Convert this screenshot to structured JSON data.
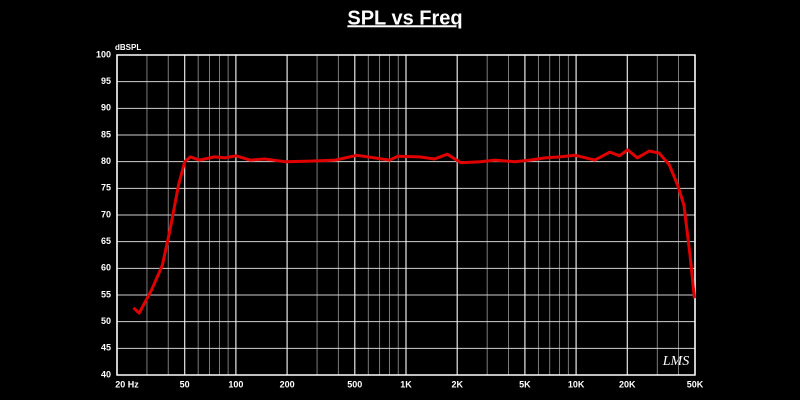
{
  "chart_data": {
    "type": "line",
    "title": "SPL vs Freq",
    "y_label": "dBSPL",
    "watermark": "LMS",
    "x_log": true,
    "grid": true,
    "xlim": [
      20,
      50000
    ],
    "ylim": [
      40,
      100
    ],
    "xticks": [
      {
        "value": 20,
        "label": "20 Hz"
      },
      50,
      100,
      200,
      500,
      {
        "value": 1000,
        "label": "1K"
      },
      {
        "value": 2000,
        "label": "2K"
      },
      {
        "value": 5000,
        "label": "5K"
      },
      {
        "value": 10000,
        "label": "10K"
      },
      {
        "value": 20000,
        "label": "20K"
      },
      {
        "value": 50000,
        "label": "50K"
      }
    ],
    "x_minor_ticks": [
      30,
      40,
      60,
      70,
      80,
      90,
      300,
      400,
      600,
      700,
      800,
      900,
      3000,
      4000,
      6000,
      7000,
      8000,
      9000,
      30000,
      40000
    ],
    "yticks": [
      40,
      45,
      50,
      55,
      60,
      65,
      70,
      75,
      80,
      85,
      90,
      95,
      100
    ],
    "series": [
      {
        "name": "SPL",
        "color": "#e00000",
        "x": [
          25,
          27,
          32,
          37,
          41,
          46,
          50,
          54,
          61,
          75,
          86,
          100,
          121,
          148,
          194,
          273,
          384,
          513,
          654,
          802,
          892,
          1200,
          1470,
          1750,
          2100,
          2740,
          3350,
          4380,
          5350,
          6560,
          8030,
          9860,
          12900,
          15800,
          18000,
          20100,
          22900,
          26900,
          30800,
          35300,
          39500,
          43000,
          46700,
          49600
        ],
        "values": [
          52.6,
          51.6,
          56,
          60.6,
          67.2,
          75.6,
          80,
          80.9,
          80.3,
          80.9,
          80.7,
          81.1,
          80.3,
          80.5,
          80,
          80.1,
          80.3,
          81.2,
          80.7,
          80.3,
          81,
          80.9,
          80.5,
          81.4,
          79.8,
          80,
          80.3,
          80,
          80.3,
          80.7,
          80.9,
          81.2,
          80.3,
          81.8,
          81.1,
          82.2,
          80.7,
          82,
          81.6,
          79.4,
          75.6,
          71.9,
          62.5,
          54.4
        ]
      }
    ]
  }
}
